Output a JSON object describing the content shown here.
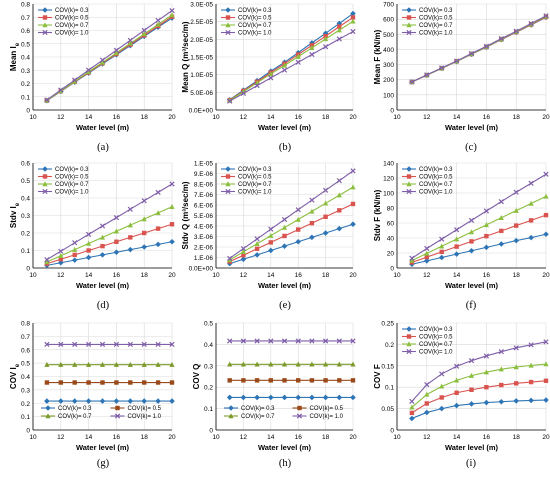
{
  "colors": {
    "COV(k)= 0.3": "#2e75b6",
    "COV(k)= 0.5": "#d9534f",
    "COV(k)= 0.7": "#8cbf3f",
    "COV(k)= 1.0": "#7f5fa8",
    "COV(k)= 0.5 (g,h)": "#9a4a1a",
    "COV(k)= 0.7 (g,h)": "#7c9a2a",
    "axis": "#000000",
    "grid": "#d9d9d9",
    "background": "#ffffff"
  },
  "chart_data": [
    {
      "panel": "(a)",
      "type": "line",
      "ylabel": "Mean I_e",
      "xlabel": "Water level (m)",
      "xlim": [
        10,
        20
      ],
      "xticks": [
        "10",
        "12",
        "14",
        "16",
        "18",
        "20"
      ],
      "ylim": [
        0,
        0.8
      ],
      "yticks": [
        "0",
        "0.1",
        "0.2",
        "0.3",
        "0.4",
        "0.5",
        "0.6",
        "0.7",
        "0.8"
      ],
      "grid": true,
      "legend": "top-left",
      "legend_rows": 4,
      "x": [
        11,
        12,
        13,
        14,
        15,
        16,
        17,
        18,
        19,
        20
      ],
      "series": [
        {
          "name": "COV(k)= 0.3",
          "marker": "diamond",
          "values": [
            0.07,
            0.14,
            0.21,
            0.279,
            0.348,
            0.417,
            0.486,
            0.556,
            0.625,
            0.694
          ]
        },
        {
          "name": "COV(k)= 0.5",
          "marker": "square",
          "values": [
            0.071,
            0.142,
            0.213,
            0.283,
            0.353,
            0.423,
            0.494,
            0.564,
            0.634,
            0.704
          ]
        },
        {
          "name": "COV(k)= 0.7",
          "marker": "triangle",
          "values": [
            0.072,
            0.144,
            0.216,
            0.288,
            0.359,
            0.431,
            0.503,
            0.574,
            0.646,
            0.717
          ]
        },
        {
          "name": "COV(k)= 1.0",
          "marker": "x",
          "values": [
            0.076,
            0.151,
            0.226,
            0.301,
            0.376,
            0.451,
            0.526,
            0.601,
            0.676,
            0.75
          ]
        }
      ]
    },
    {
      "panel": "(b)",
      "type": "line",
      "ylabel": "Mean Q (m³/sec/m)",
      "xlabel": "Water level (m)",
      "xlim": [
        10,
        20
      ],
      "xticks": [
        "10",
        "12",
        "14",
        "16",
        "18",
        "20"
      ],
      "ylim": [
        0,
        3e-05
      ],
      "yticks": [
        "0.0E+00",
        "5.0E-06",
        "1.0E-05",
        "1.5E-05",
        "2.0E-05",
        "2.5E-05",
        "3.0E-05"
      ],
      "grid": true,
      "legend": "top-left",
      "legend_rows": 4,
      "x": [
        11,
        12,
        13,
        14,
        15,
        16,
        17,
        18,
        19,
        20
      ],
      "series": [
        {
          "name": "COV(k)= 0.3",
          "marker": "diamond",
          "values": [
            2.9e-06,
            5.6e-06,
            8.3e-06,
            1.1e-05,
            1.35e-05,
            1.62e-05,
            1.9e-05,
            2.17e-05,
            2.45e-05,
            2.73e-05
          ]
        },
        {
          "name": "COV(k)= 0.5",
          "marker": "square",
          "values": [
            2.8e-06,
            5.4e-06,
            8e-06,
            1.06e-05,
            1.31e-05,
            1.57e-05,
            1.83e-05,
            2.09e-05,
            2.36e-05,
            2.62e-05
          ]
        },
        {
          "name": "COV(k)= 0.7",
          "marker": "triangle",
          "values": [
            2.7e-06,
            5.2e-06,
            7.7e-06,
            1.02e-05,
            1.26e-05,
            1.51e-05,
            1.76e-05,
            2.01e-05,
            2.26e-05,
            2.51e-05
          ]
        },
        {
          "name": "COV(k)= 1.0",
          "marker": "x",
          "values": [
            2.5e-06,
            4.7e-06,
            6.9e-06,
            9.1e-06,
            1.13e-05,
            1.35e-05,
            1.57e-05,
            1.79e-05,
            2.01e-05,
            2.22e-05
          ]
        }
      ]
    },
    {
      "panel": "(c)",
      "type": "line",
      "ylabel": "Mean F (kN/m)",
      "xlabel": "Water level (m)",
      "xlim": [
        10,
        20
      ],
      "xticks": [
        "10",
        "12",
        "14",
        "16",
        "18",
        "20"
      ],
      "ylim": [
        0,
        700
      ],
      "yticks": [
        "0",
        "100",
        "200",
        "300",
        "400",
        "500",
        "600",
        "700"
      ],
      "grid": true,
      "legend": "top-left",
      "legend_rows": 4,
      "x": [
        11,
        12,
        13,
        14,
        15,
        16,
        17,
        18,
        19,
        20
      ],
      "series": [
        {
          "name": "COV(k)= 0.3",
          "marker": "diamond",
          "values": [
            185,
            230,
            275,
            320,
            368,
            415,
            465,
            513,
            562,
            612
          ]
        },
        {
          "name": "COV(k)= 0.5",
          "marker": "square",
          "values": [
            185,
            230,
            275,
            321,
            369,
            416,
            466,
            514,
            564,
            614
          ]
        },
        {
          "name": "COV(k)= 0.7",
          "marker": "triangle",
          "values": [
            185,
            231,
            276,
            322,
            370,
            418,
            468,
            517,
            567,
            618
          ]
        },
        {
          "name": "COV(k)= 1.0",
          "marker": "x",
          "values": [
            186,
            232,
            278,
            324,
            373,
            421,
            471,
            520,
            571,
            622
          ]
        }
      ]
    },
    {
      "panel": "(d)",
      "type": "line",
      "ylabel": "Stdv I_e",
      "xlabel": "Water level (m)",
      "xlim": [
        10,
        20
      ],
      "xticks": [
        "10",
        "12",
        "14",
        "16",
        "18",
        "20"
      ],
      "ylim": [
        0,
        0.6
      ],
      "yticks": [
        "0",
        "0.1",
        "0.2",
        "0.3",
        "0.4",
        "0.5",
        "0.6"
      ],
      "grid": true,
      "legend": "top-left",
      "legend_rows": 4,
      "x": [
        11,
        12,
        13,
        14,
        15,
        16,
        17,
        18,
        19,
        20
      ],
      "series": [
        {
          "name": "COV(k)= 0.3",
          "marker": "diamond",
          "values": [
            0.015,
            0.03,
            0.045,
            0.06,
            0.075,
            0.09,
            0.105,
            0.12,
            0.135,
            0.15
          ]
        },
        {
          "name": "COV(k)= 0.5",
          "marker": "square",
          "values": [
            0.025,
            0.05,
            0.075,
            0.1,
            0.125,
            0.15,
            0.175,
            0.2,
            0.225,
            0.25
          ]
        },
        {
          "name": "COV(k)= 0.7",
          "marker": "triangle",
          "values": [
            0.035,
            0.07,
            0.105,
            0.14,
            0.175,
            0.21,
            0.245,
            0.28,
            0.315,
            0.35
          ]
        },
        {
          "name": "COV(k)= 1.0",
          "marker": "x",
          "values": [
            0.048,
            0.096,
            0.144,
            0.192,
            0.24,
            0.288,
            0.336,
            0.384,
            0.432,
            0.48
          ]
        }
      ]
    },
    {
      "panel": "(e)",
      "type": "line",
      "ylabel": "Stdv Q (m³/sec/m)",
      "xlabel": "Water level (m)",
      "xlim": [
        10,
        20
      ],
      "xticks": [
        "10",
        "12",
        "14",
        "16",
        "18",
        "20"
      ],
      "ylim": [
        0,
        1e-05
      ],
      "yticks": [
        "0.0E+00",
        "1.E-06",
        "2.E-06",
        "3.E-06",
        "4.E-06",
        "5.E-06",
        "6.E-06",
        "7.E-06",
        "8.E-06",
        "9.E-06",
        "1.E-05"
      ],
      "grid": true,
      "legend": "top-left",
      "legend_rows": 4,
      "x": [
        11,
        12,
        13,
        14,
        15,
        16,
        17,
        18,
        19,
        20
      ],
      "series": [
        {
          "name": "COV(k)= 0.3",
          "marker": "diamond",
          "values": [
            4.2e-07,
            8.3e-07,
            1.25e-06,
            1.67e-06,
            2.08e-06,
            2.5e-06,
            2.92e-06,
            3.33e-06,
            3.75e-06,
            4.17e-06
          ]
        },
        {
          "name": "COV(k)= 0.5",
          "marker": "square",
          "values": [
            6.1e-07,
            1.22e-06,
            1.83e-06,
            2.44e-06,
            3.05e-06,
            3.66e-06,
            4.27e-06,
            4.88e-06,
            5.49e-06,
            6.1e-06
          ]
        },
        {
          "name": "COV(k)= 0.7",
          "marker": "triangle",
          "values": [
            7.7e-07,
            1.54e-06,
            2.31e-06,
            3.08e-06,
            3.85e-06,
            4.62e-06,
            5.39e-06,
            6.16e-06,
            6.93e-06,
            7.7e-06
          ]
        },
        {
          "name": "COV(k)= 1.0",
          "marker": "x",
          "values": [
            9.2e-07,
            1.85e-06,
            2.77e-06,
            3.7e-06,
            4.62e-06,
            5.55e-06,
            6.47e-06,
            7.4e-06,
            8.32e-06,
            9.25e-06
          ]
        }
      ]
    },
    {
      "panel": "(f)",
      "type": "line",
      "ylabel": "Stdv F (kN/m)",
      "xlabel": "Water level (m)",
      "xlim": [
        10,
        20
      ],
      "xticks": [
        "10",
        "12",
        "14",
        "16",
        "18",
        "20"
      ],
      "ylim": [
        0,
        140
      ],
      "yticks": [
        "0",
        "20",
        "40",
        "60",
        "80",
        "100",
        "120",
        "140"
      ],
      "grid": true,
      "legend": "top-left",
      "legend_rows": 4,
      "x": [
        11,
        12,
        13,
        14,
        15,
        16,
        17,
        18,
        19,
        20
      ],
      "series": [
        {
          "name": "COV(k)= 0.3",
          "marker": "diamond",
          "values": [
            5,
            9.5,
            14,
            18.5,
            23,
            27.5,
            32,
            36.5,
            40.5,
            45
          ]
        },
        {
          "name": "COV(k)= 0.5",
          "marker": "square",
          "values": [
            7.5,
            14.5,
            21.5,
            28.5,
            35.5,
            42.5,
            49.5,
            56.5,
            63.5,
            70.5
          ]
        },
        {
          "name": "COV(k)= 0.7",
          "marker": "triangle",
          "values": [
            10,
            19.5,
            29,
            38.5,
            48,
            57.5,
            67,
            76.5,
            86,
            95.5
          ]
        },
        {
          "name": "COV(k)= 1.0",
          "marker": "x",
          "values": [
            13,
            26,
            38.5,
            51,
            63.5,
            76,
            88.5,
            101,
            113,
            125
          ]
        }
      ]
    },
    {
      "panel": "(g)",
      "type": "line",
      "ylabel": "COV I_e",
      "xlabel": "Water level (m)",
      "xlim": [
        10,
        20
      ],
      "xticks": [
        "10",
        "12",
        "14",
        "16",
        "18",
        "20"
      ],
      "ylim": [
        0,
        0.8
      ],
      "yticks": [
        "0",
        "0.1",
        "0.2",
        "0.3",
        "0.4",
        "0.5",
        "0.6",
        "0.7",
        "0.8"
      ],
      "grid": true,
      "legend": "bottom-center",
      "legend_rows": 2,
      "x": [
        11,
        12,
        13,
        14,
        15,
        16,
        17,
        18,
        19,
        20
      ],
      "series": [
        {
          "name": "COV(k)= 0.3",
          "marker": "diamond",
          "values": [
            0.216,
            0.216,
            0.216,
            0.216,
            0.216,
            0.216,
            0.216,
            0.216,
            0.216,
            0.216
          ]
        },
        {
          "name": "COV(k)= 0.5",
          "marker": "square",
          "values": [
            0.355,
            0.355,
            0.355,
            0.355,
            0.355,
            0.355,
            0.355,
            0.355,
            0.355,
            0.355
          ]
        },
        {
          "name": "COV(k)= 0.7",
          "marker": "triangle",
          "values": [
            0.488,
            0.488,
            0.488,
            0.488,
            0.488,
            0.488,
            0.488,
            0.488,
            0.488,
            0.488
          ]
        },
        {
          "name": "COV(k)= 1.0",
          "marker": "x",
          "values": [
            0.64,
            0.64,
            0.64,
            0.64,
            0.64,
            0.64,
            0.64,
            0.64,
            0.64,
            0.64
          ]
        }
      ]
    },
    {
      "panel": "(h)",
      "type": "line",
      "ylabel": "COV Q",
      "xlabel": "Water level (m)",
      "xlim": [
        10,
        20
      ],
      "xticks": [
        "10",
        "12",
        "14",
        "16",
        "18",
        "20"
      ],
      "ylim": [
        0,
        0.5
      ],
      "yticks": [
        "0",
        "0.1",
        "0.2",
        "0.3",
        "0.4",
        "0.5"
      ],
      "grid": true,
      "legend": "bottom-center",
      "legend_rows": 2,
      "x": [
        11,
        12,
        13,
        14,
        15,
        16,
        17,
        18,
        19,
        20
      ],
      "series": [
        {
          "name": "COV(k)= 0.3",
          "marker": "diamond",
          "values": [
            0.152,
            0.152,
            0.152,
            0.152,
            0.152,
            0.152,
            0.152,
            0.152,
            0.152,
            0.152
          ]
        },
        {
          "name": "COV(k)= 0.5",
          "marker": "square",
          "values": [
            0.232,
            0.232,
            0.232,
            0.232,
            0.232,
            0.232,
            0.232,
            0.232,
            0.232,
            0.232
          ]
        },
        {
          "name": "COV(k)= 0.7",
          "marker": "triangle",
          "values": [
            0.307,
            0.307,
            0.307,
            0.307,
            0.307,
            0.307,
            0.307,
            0.307,
            0.307,
            0.307
          ]
        },
        {
          "name": "COV(k)= 1.0",
          "marker": "x",
          "values": [
            0.416,
            0.416,
            0.416,
            0.416,
            0.416,
            0.416,
            0.416,
            0.416,
            0.416,
            0.416
          ]
        }
      ]
    },
    {
      "panel": "(i)",
      "type": "line",
      "ylabel": "COV F",
      "xlabel": "Water level (m)",
      "xlim": [
        10,
        20
      ],
      "xticks": [
        "10",
        "12",
        "14",
        "16",
        "18",
        "20"
      ],
      "ylim": [
        0,
        0.25
      ],
      "yticks": [
        "0",
        "0.05",
        "0.1",
        "0.15",
        "0.2",
        "0.25"
      ],
      "grid": true,
      "legend": "top-left",
      "legend_rows": 4,
      "x": [
        11,
        12,
        13,
        14,
        15,
        16,
        17,
        18,
        19,
        20
      ],
      "series": [
        {
          "name": "COV(k)= 0.3",
          "marker": "diamond",
          "values": [
            0.027,
            0.041,
            0.05,
            0.057,
            0.061,
            0.064,
            0.066,
            0.068,
            0.069,
            0.07
          ]
        },
        {
          "name": "COV(k)= 0.5",
          "marker": "square",
          "values": [
            0.04,
            0.062,
            0.076,
            0.087,
            0.094,
            0.1,
            0.105,
            0.109,
            0.112,
            0.115
          ]
        },
        {
          "name": "COV(k)= 0.7",
          "marker": "triangle",
          "values": [
            0.053,
            0.083,
            0.102,
            0.116,
            0.127,
            0.135,
            0.142,
            0.147,
            0.151,
            0.154
          ]
        },
        {
          "name": "COV(k)= 1.0",
          "marker": "x",
          "values": [
            0.067,
            0.106,
            0.131,
            0.149,
            0.162,
            0.173,
            0.183,
            0.192,
            0.199,
            0.206
          ]
        }
      ]
    }
  ]
}
